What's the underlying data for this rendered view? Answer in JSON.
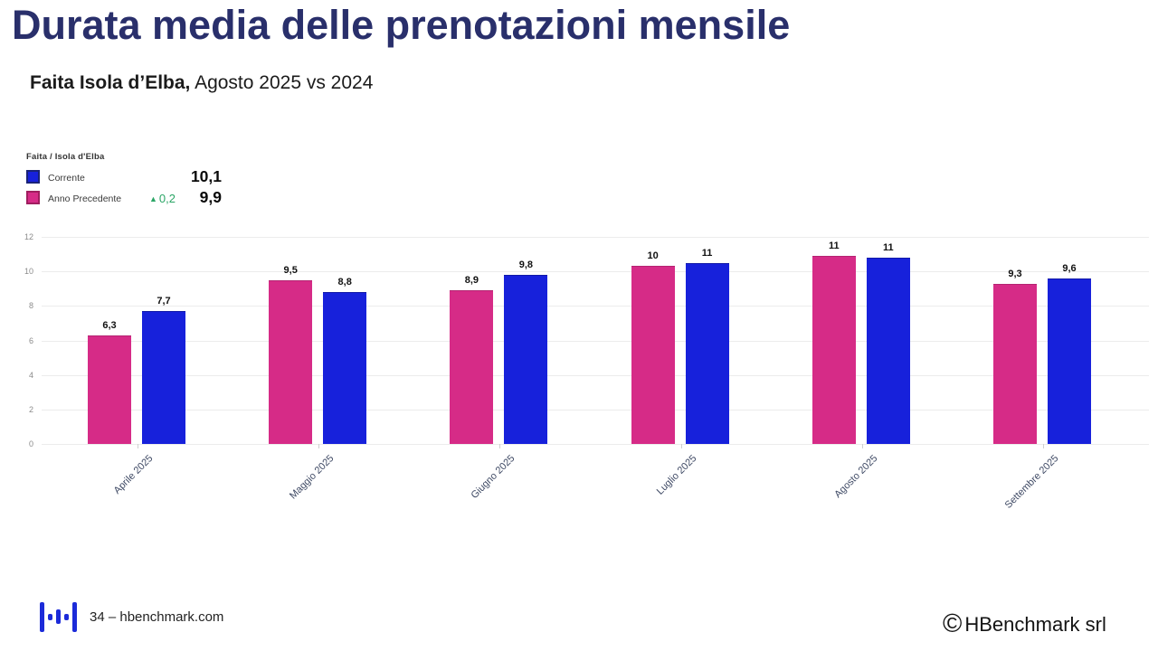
{
  "title": "Durata media delle prenotazioni mensile",
  "subtitle": {
    "bold": "Faita Isola d’Elba,",
    "regular": " Agosto 2025 vs 2024"
  },
  "legend": {
    "header": "Faita / Isola d'Elba",
    "rows": [
      {
        "label": "Corrente",
        "value": "10,1",
        "color": "#1721DB",
        "border": "#1A2377",
        "delta": null
      },
      {
        "label": "Anno Precedente",
        "value": "9,9",
        "color": "#D62B87",
        "border": "#A01E5F",
        "delta": "0,2",
        "delta_color": "#2AA565",
        "delta_icon": "up-triangle"
      }
    ]
  },
  "chart_data": {
    "type": "bar",
    "title": "Durata media delle prenotazioni mensile",
    "categories": [
      "Aprile 2025",
      "Maggio 2025",
      "Giugno 2025",
      "Luglio 2025",
      "Agosto 2025",
      "Settembre 2025"
    ],
    "series": [
      {
        "name": "Anno Precedente",
        "color": "#D62B87",
        "border": "#B42371",
        "values": [
          6.3,
          9.5,
          8.9,
          10.3,
          10.9,
          9.3
        ],
        "labels": [
          "6,3",
          "9,5",
          "8,9",
          "10",
          "11",
          "9,3"
        ]
      },
      {
        "name": "Corrente",
        "color": "#1721DB",
        "border": "#1119A8",
        "values": [
          7.7,
          8.8,
          9.8,
          10.5,
          10.8,
          9.6
        ],
        "labels": [
          "7,7",
          "8,8",
          "9,8",
          "11",
          "11",
          "9,6"
        ]
      }
    ],
    "ylim": [
      0,
      12
    ],
    "yticks": [
      0,
      2,
      4,
      6,
      8,
      10,
      12
    ],
    "grid": true,
    "legend_position": "top-left"
  },
  "footer": {
    "left_text": "34 – hbenchmark.com",
    "copyright_symbol": "©",
    "right_text": "HBenchmark srl"
  }
}
